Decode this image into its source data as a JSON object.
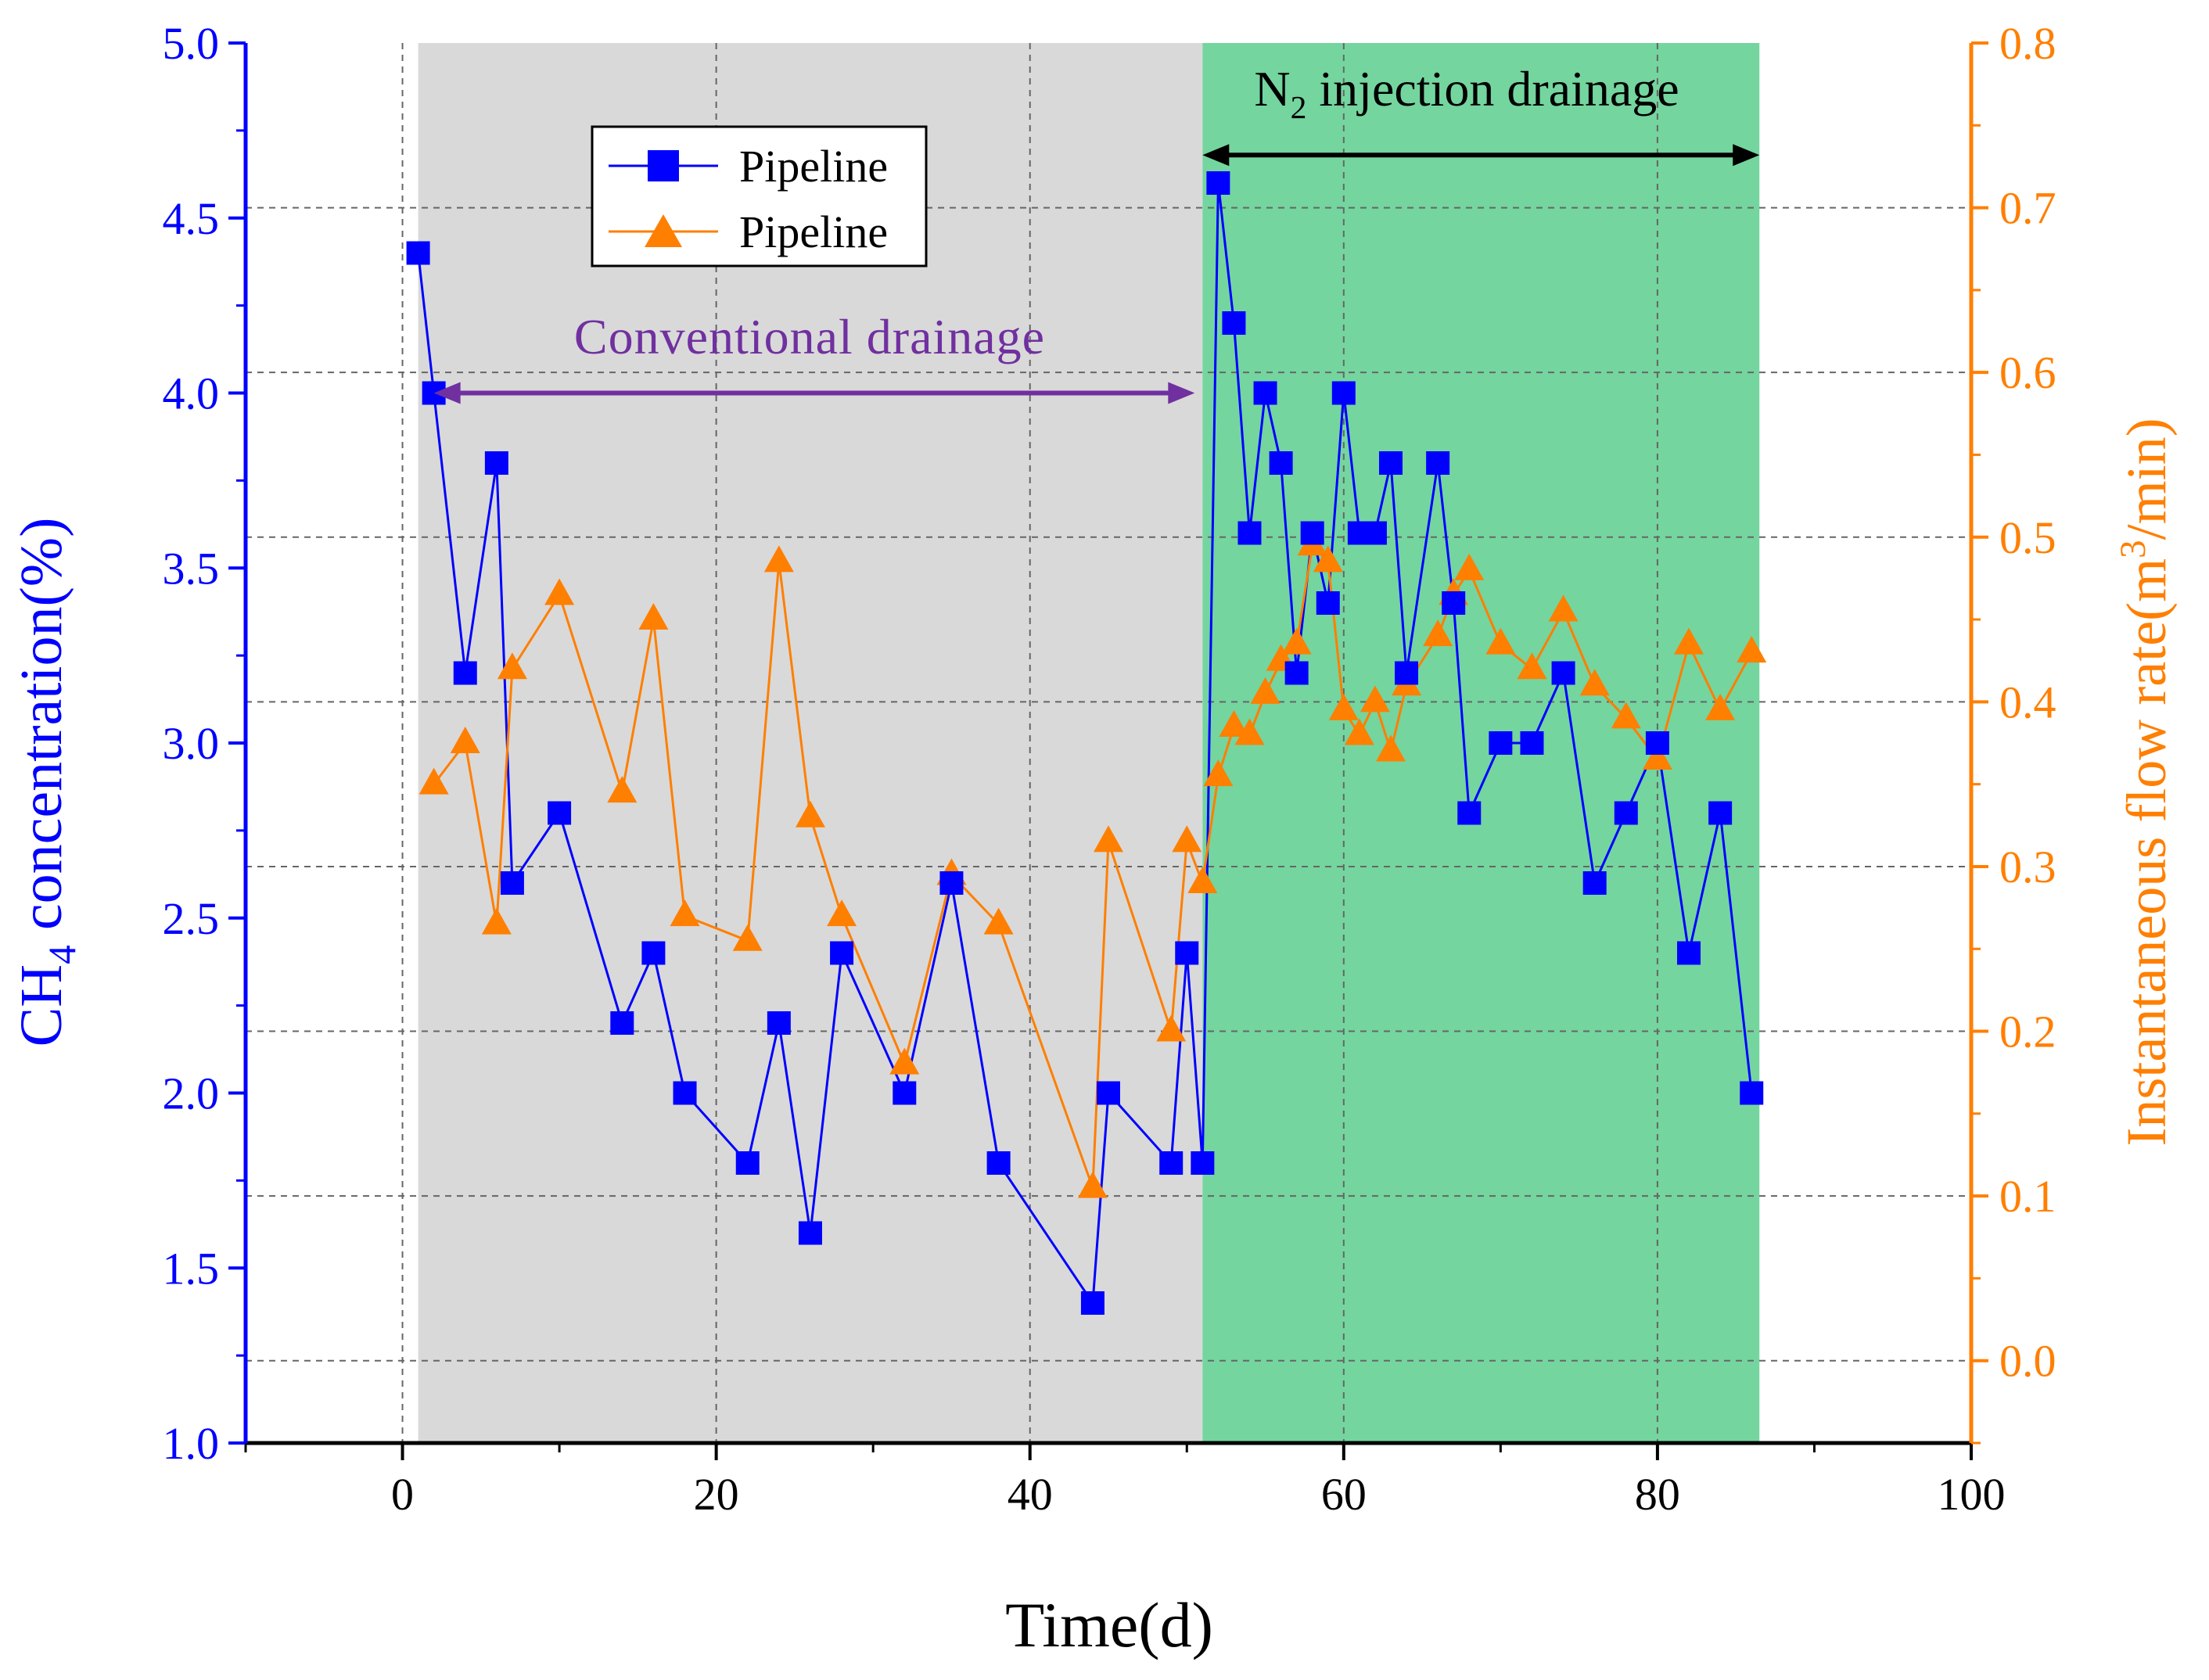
{
  "chart_data": {
    "type": "line",
    "x_axis": {
      "label": "Time(d)",
      "range": [
        -10,
        100
      ],
      "ticks": [
        0,
        20,
        40,
        60,
        80,
        100
      ],
      "tick_labels": [
        "0",
        "20",
        "40",
        "60",
        "80",
        "100"
      ]
    },
    "y_left": {
      "label_prefix": "CH",
      "label_sub": "4",
      "label_suffix": " concentration(%)",
      "range": [
        1.0,
        5.0
      ],
      "ticks": [
        1.0,
        1.5,
        2.0,
        2.5,
        3.0,
        3.5,
        4.0,
        4.5,
        5.0
      ],
      "tick_labels": [
        "1.0",
        "1.5",
        "2.0",
        "2.5",
        "3.0",
        "3.5",
        "4.0",
        "4.5",
        "5.0"
      ],
      "color": "#0000ff"
    },
    "y_right": {
      "label_prefix": "Instantaneous flow rate(m",
      "label_sup": "3",
      "label_suffix": "/min)",
      "range": [
        -0.05,
        0.8
      ],
      "ticks": [
        0.0,
        0.1,
        0.2,
        0.3,
        0.4,
        0.5,
        0.6,
        0.7,
        0.8
      ],
      "tick_labels": [
        "0.0",
        "0.1",
        "0.2",
        "0.3",
        "0.4",
        "0.5",
        "0.6",
        "0.7",
        "0.8"
      ],
      "color": "#ff7f00"
    },
    "regions": [
      {
        "name": "Conventional drainage",
        "x_start": 1,
        "x_end": 51,
        "color": "#d9d9d9"
      },
      {
        "name": "N2 injection drainage",
        "x_start": 51,
        "x_end": 86.5,
        "color": "#74d59f"
      }
    ],
    "annotations": {
      "conventional": {
        "text": "Conventional drainage",
        "color": "#7030a0",
        "x_from": 2,
        "x_to": 50.5,
        "y": 4.0
      },
      "n2": {
        "text_prefix": "N",
        "text_sub": "2",
        "text_suffix": " injection drainage",
        "color": "#000000",
        "x_from": 51,
        "x_to": 86.5,
        "y": 4.68
      }
    },
    "legend": {
      "placement": "top-left",
      "entries": [
        "Pipeline",
        "Pipeline"
      ]
    },
    "series": [
      {
        "name": "Pipeline",
        "axis": "left",
        "marker": "square",
        "color": "#0000ff",
        "x": [
          1,
          2,
          4,
          6,
          7,
          10,
          14,
          16,
          18,
          22,
          24,
          26,
          28,
          32,
          35,
          38,
          44,
          45,
          49,
          50,
          51,
          52,
          53,
          54,
          55,
          56,
          57,
          58,
          59,
          60,
          61,
          62,
          63,
          64,
          66,
          67,
          68,
          70,
          72,
          74,
          76,
          78,
          80,
          82,
          84,
          86
        ],
        "y": [
          4.4,
          4.0,
          3.2,
          3.8,
          2.6,
          2.8,
          2.2,
          2.4,
          2.0,
          1.8,
          2.2,
          1.6,
          2.4,
          2.0,
          2.6,
          1.8,
          1.4,
          2.0,
          1.8,
          2.4,
          1.8,
          4.6,
          4.2,
          3.6,
          4.0,
          3.8,
          3.2,
          3.6,
          3.4,
          4.0,
          3.6,
          3.6,
          3.8,
          3.2,
          3.8,
          3.4,
          2.8,
          3.0,
          3.0,
          3.2,
          2.6,
          2.8,
          3.0,
          2.4,
          2.8,
          2.0
        ]
      },
      {
        "name": "Pipeline",
        "axis": "right",
        "marker": "triangle",
        "color": "#ff7f00",
        "x": [
          2,
          4,
          6,
          7,
          10,
          14,
          16,
          18,
          22,
          24,
          26,
          28,
          32,
          35,
          38,
          44,
          45,
          49,
          50,
          51,
          52,
          53,
          54,
          55,
          56,
          57,
          58,
          59,
          60,
          61,
          62,
          63,
          64,
          66,
          67,
          68,
          70,
          72,
          74,
          76,
          78,
          80,
          82,
          84,
          86
        ],
        "y": [
          0.35,
          0.375,
          0.265,
          0.42,
          0.465,
          0.345,
          0.45,
          0.27,
          0.255,
          0.485,
          0.33,
          0.27,
          0.18,
          0.295,
          0.265,
          0.105,
          0.315,
          0.2,
          0.315,
          0.29,
          0.355,
          0.385,
          0.38,
          0.405,
          0.425,
          0.435,
          0.495,
          0.485,
          0.395,
          0.38,
          0.4,
          0.37,
          0.41,
          0.44,
          0.465,
          0.48,
          0.435,
          0.42,
          0.455,
          0.41,
          0.39,
          0.365,
          0.435,
          0.395,
          0.43
        ]
      }
    ]
  }
}
